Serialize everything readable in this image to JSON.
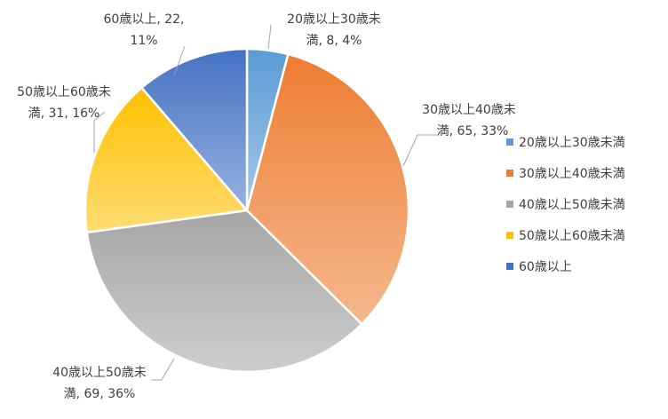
{
  "chart_data": {
    "type": "pie",
    "title": "",
    "legend_position": "right",
    "slices": [
      {
        "category": "20歳以上30歳未満",
        "value": 8,
        "percent": 4,
        "label_line1": "20歳以上30歳未",
        "label_line2": "満, 8, 4%",
        "color": "#5B9BD5"
      },
      {
        "category": "30歳以上40歳未満",
        "value": 65,
        "percent": 33,
        "label_line1": "30歳以上40歳未",
        "label_line2": "満, 65, 33%",
        "color": "#ED7D31"
      },
      {
        "category": "40歳以上50歳未満",
        "value": 69,
        "percent": 36,
        "label_line1": "40歳以上50歳未",
        "label_line2": "満, 69, 36%",
        "color": "#A5A5A5"
      },
      {
        "category": "50歳以上60歳未満",
        "value": 31,
        "percent": 16,
        "label_line1": "50歳以上60歳未",
        "label_line2": "満, 31, 16%",
        "color": "#FFC000"
      },
      {
        "category": "60歳以上",
        "value": 22,
        "percent": 11,
        "label_line1": "60歳以上, 22,",
        "label_line2": "11%",
        "color": "#4472C4"
      }
    ]
  }
}
